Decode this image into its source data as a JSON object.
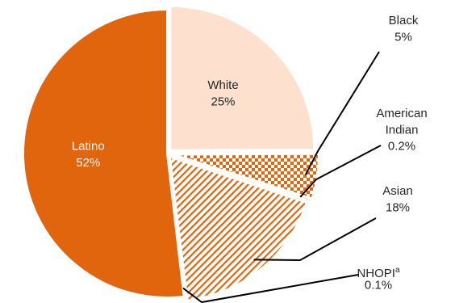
{
  "chart_data": {
    "type": "pie",
    "title": "",
    "legend": "none",
    "slices": [
      {
        "key": "white",
        "label": "White",
        "label_lines": [
          "White"
        ],
        "value": 25,
        "value_label": "25%",
        "fill": "#fde0cd",
        "pattern": "solid",
        "label_placement": "inside",
        "label_color": "#262626"
      },
      {
        "key": "black",
        "label": "Black",
        "label_lines": [
          "Black"
        ],
        "value": 5,
        "value_label": "5%",
        "fill": "#e0650c",
        "pattern": "checker",
        "label_placement": "outside",
        "label_color": "#262626"
      },
      {
        "key": "american-indian",
        "label": "American Indian",
        "label_lines": [
          "American",
          "Indian"
        ],
        "value": 0.2,
        "value_label": "0.2%",
        "fill": "#e0650c",
        "pattern": "solid",
        "label_placement": "outside",
        "label_color": "#262626"
      },
      {
        "key": "asian",
        "label": "Asian",
        "label_lines": [
          "Asian"
        ],
        "value": 18,
        "value_label": "18%",
        "fill": "#e0650c",
        "pattern": "hatch",
        "label_placement": "outside",
        "label_color": "#262626"
      },
      {
        "key": "nhopi",
        "label": "NHOPI",
        "label_lines": [
          "NHOPI"
        ],
        "superscript": "a",
        "value": 0.1,
        "value_label": "0.1%",
        "fill": "#e0650c",
        "pattern": "solid",
        "label_placement": "outside",
        "label_color": "#262626"
      },
      {
        "key": "latino",
        "label": "Latino",
        "label_lines": [
          "Latino"
        ],
        "value": 52,
        "value_label": "52%",
        "fill": "#e0650c",
        "pattern": "solid",
        "label_placement": "inside",
        "label_color": "#ffffff"
      }
    ]
  }
}
